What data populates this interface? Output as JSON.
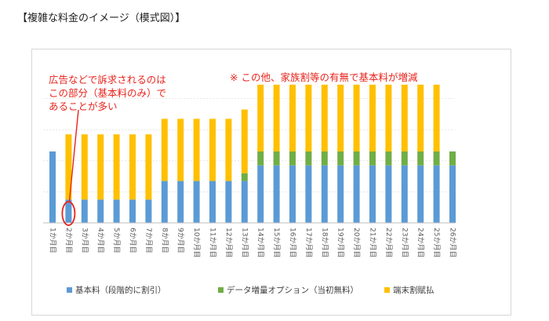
{
  "title": "【複雑な料金のイメージ（模式図）】",
  "chart_data": {
    "type": "bar",
    "stacked": true,
    "categories": [
      "1か月目",
      "2か月目",
      "3か月目",
      "4か月目",
      "5か月目",
      "6か月目",
      "7か月目",
      "8か月目",
      "9か月目",
      "10か月目",
      "11か月目",
      "12か月目",
      "13か月目",
      "14か月目",
      "15か月目",
      "16か月目",
      "17か月目",
      "18か月目",
      "19か月目",
      "20か月目",
      "21か月目",
      "22か月目",
      "23か月目",
      "24か月目",
      "25か月目",
      "26か月目"
    ],
    "series": [
      {
        "name": "基本料（段階的に割引）",
        "color": "#5b9bd5",
        "values": [
          4.6,
          1.5,
          1.5,
          1.5,
          1.5,
          1.5,
          1.5,
          2.7,
          2.7,
          2.7,
          2.7,
          2.7,
          2.7,
          3.7,
          3.7,
          3.7,
          3.7,
          3.7,
          3.7,
          3.7,
          3.7,
          3.7,
          3.7,
          3.7,
          3.7,
          3.7
        ]
      },
      {
        "name": "データ増量オプション（当初無料）",
        "color": "#70ad47",
        "values": [
          0,
          0,
          0,
          0,
          0,
          0,
          0,
          0,
          0,
          0,
          0,
          0,
          0.5,
          0.9,
          0.9,
          0.9,
          0.9,
          0.9,
          0.9,
          0.9,
          0.9,
          0.9,
          0.9,
          0.9,
          0.9,
          0.9
        ]
      },
      {
        "name": "端末割賦払",
        "color": "#ffc000",
        "values": [
          0,
          4.2,
          4.2,
          4.2,
          4.2,
          4.2,
          4.2,
          4.0,
          4.0,
          4.0,
          4.0,
          4.0,
          4.1,
          4.3,
          4.3,
          4.3,
          4.3,
          4.3,
          4.3,
          4.3,
          4.3,
          4.3,
          4.3,
          4.3,
          4.3,
          0
        ]
      }
    ],
    "ylim": [
      0,
      9.5
    ],
    "grid": true,
    "legend_position": "bottom",
    "annotations": {
      "left_lines": [
        "広告などで訴求されるのは",
        "この部分（基本料のみ）で",
        "あることが多い"
      ],
      "right_note": "※ この他、家族割等の有無で基本料が増減",
      "circled_category_index": 1
    }
  },
  "colors": {
    "annotation": "#e8241c",
    "axis": "#bfbfbf",
    "grid": "#d9d9d9",
    "tick_text": "#595959"
  }
}
